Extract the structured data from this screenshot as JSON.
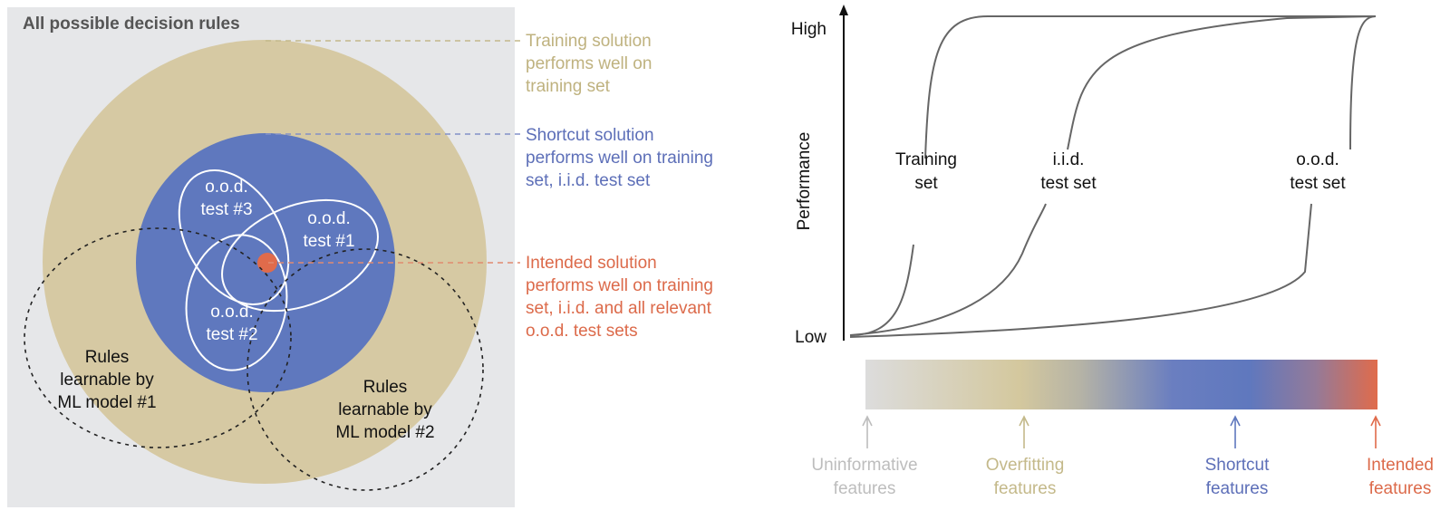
{
  "colors": {
    "background": "#e6e7e9",
    "training": "#d6c9a3",
    "training_text": "#bfb27f",
    "shortcut": "#5f78be",
    "shortcut_text": "#5d6fb8",
    "intended": "#e06b4b",
    "uninformative": "#bdbdbd"
  },
  "left": {
    "title": "All possible decision rules",
    "ood_sets": [
      {
        "line1": "o.o.d.",
        "line2": "test #1"
      },
      {
        "line1": "o.o.d.",
        "line2": "test #2"
      },
      {
        "line1": "o.o.d.",
        "line2": "test #3"
      }
    ],
    "model1": [
      "Rules",
      "learnable by",
      "ML model #1"
    ],
    "model2": [
      "Rules",
      "learnable by",
      "ML model #2"
    ],
    "annotations": {
      "training": [
        "Training solution",
        "performs well on",
        "training set"
      ],
      "shortcut": [
        "Shortcut solution",
        "performs well on training",
        "set, i.i.d. test set"
      ],
      "intended": [
        "Intended solution",
        "performs well on training",
        "set, i.i.d. and all relevant",
        "o.o.d. test sets"
      ]
    }
  },
  "right": {
    "y_axis_label": "Performance",
    "y_high": "High",
    "y_low": "Low",
    "curves": [
      {
        "line1": "Training",
        "line2": "set"
      },
      {
        "line1": "i.i.d.",
        "line2": "test set"
      },
      {
        "line1": "o.o.d.",
        "line2": "test set"
      }
    ],
    "features": [
      {
        "line1": "Uninformative",
        "line2": "features"
      },
      {
        "line1": "Overfitting",
        "line2": "features"
      },
      {
        "line1": "Shortcut",
        "line2": "features"
      },
      {
        "line1": "Intended",
        "line2": "features"
      }
    ]
  }
}
